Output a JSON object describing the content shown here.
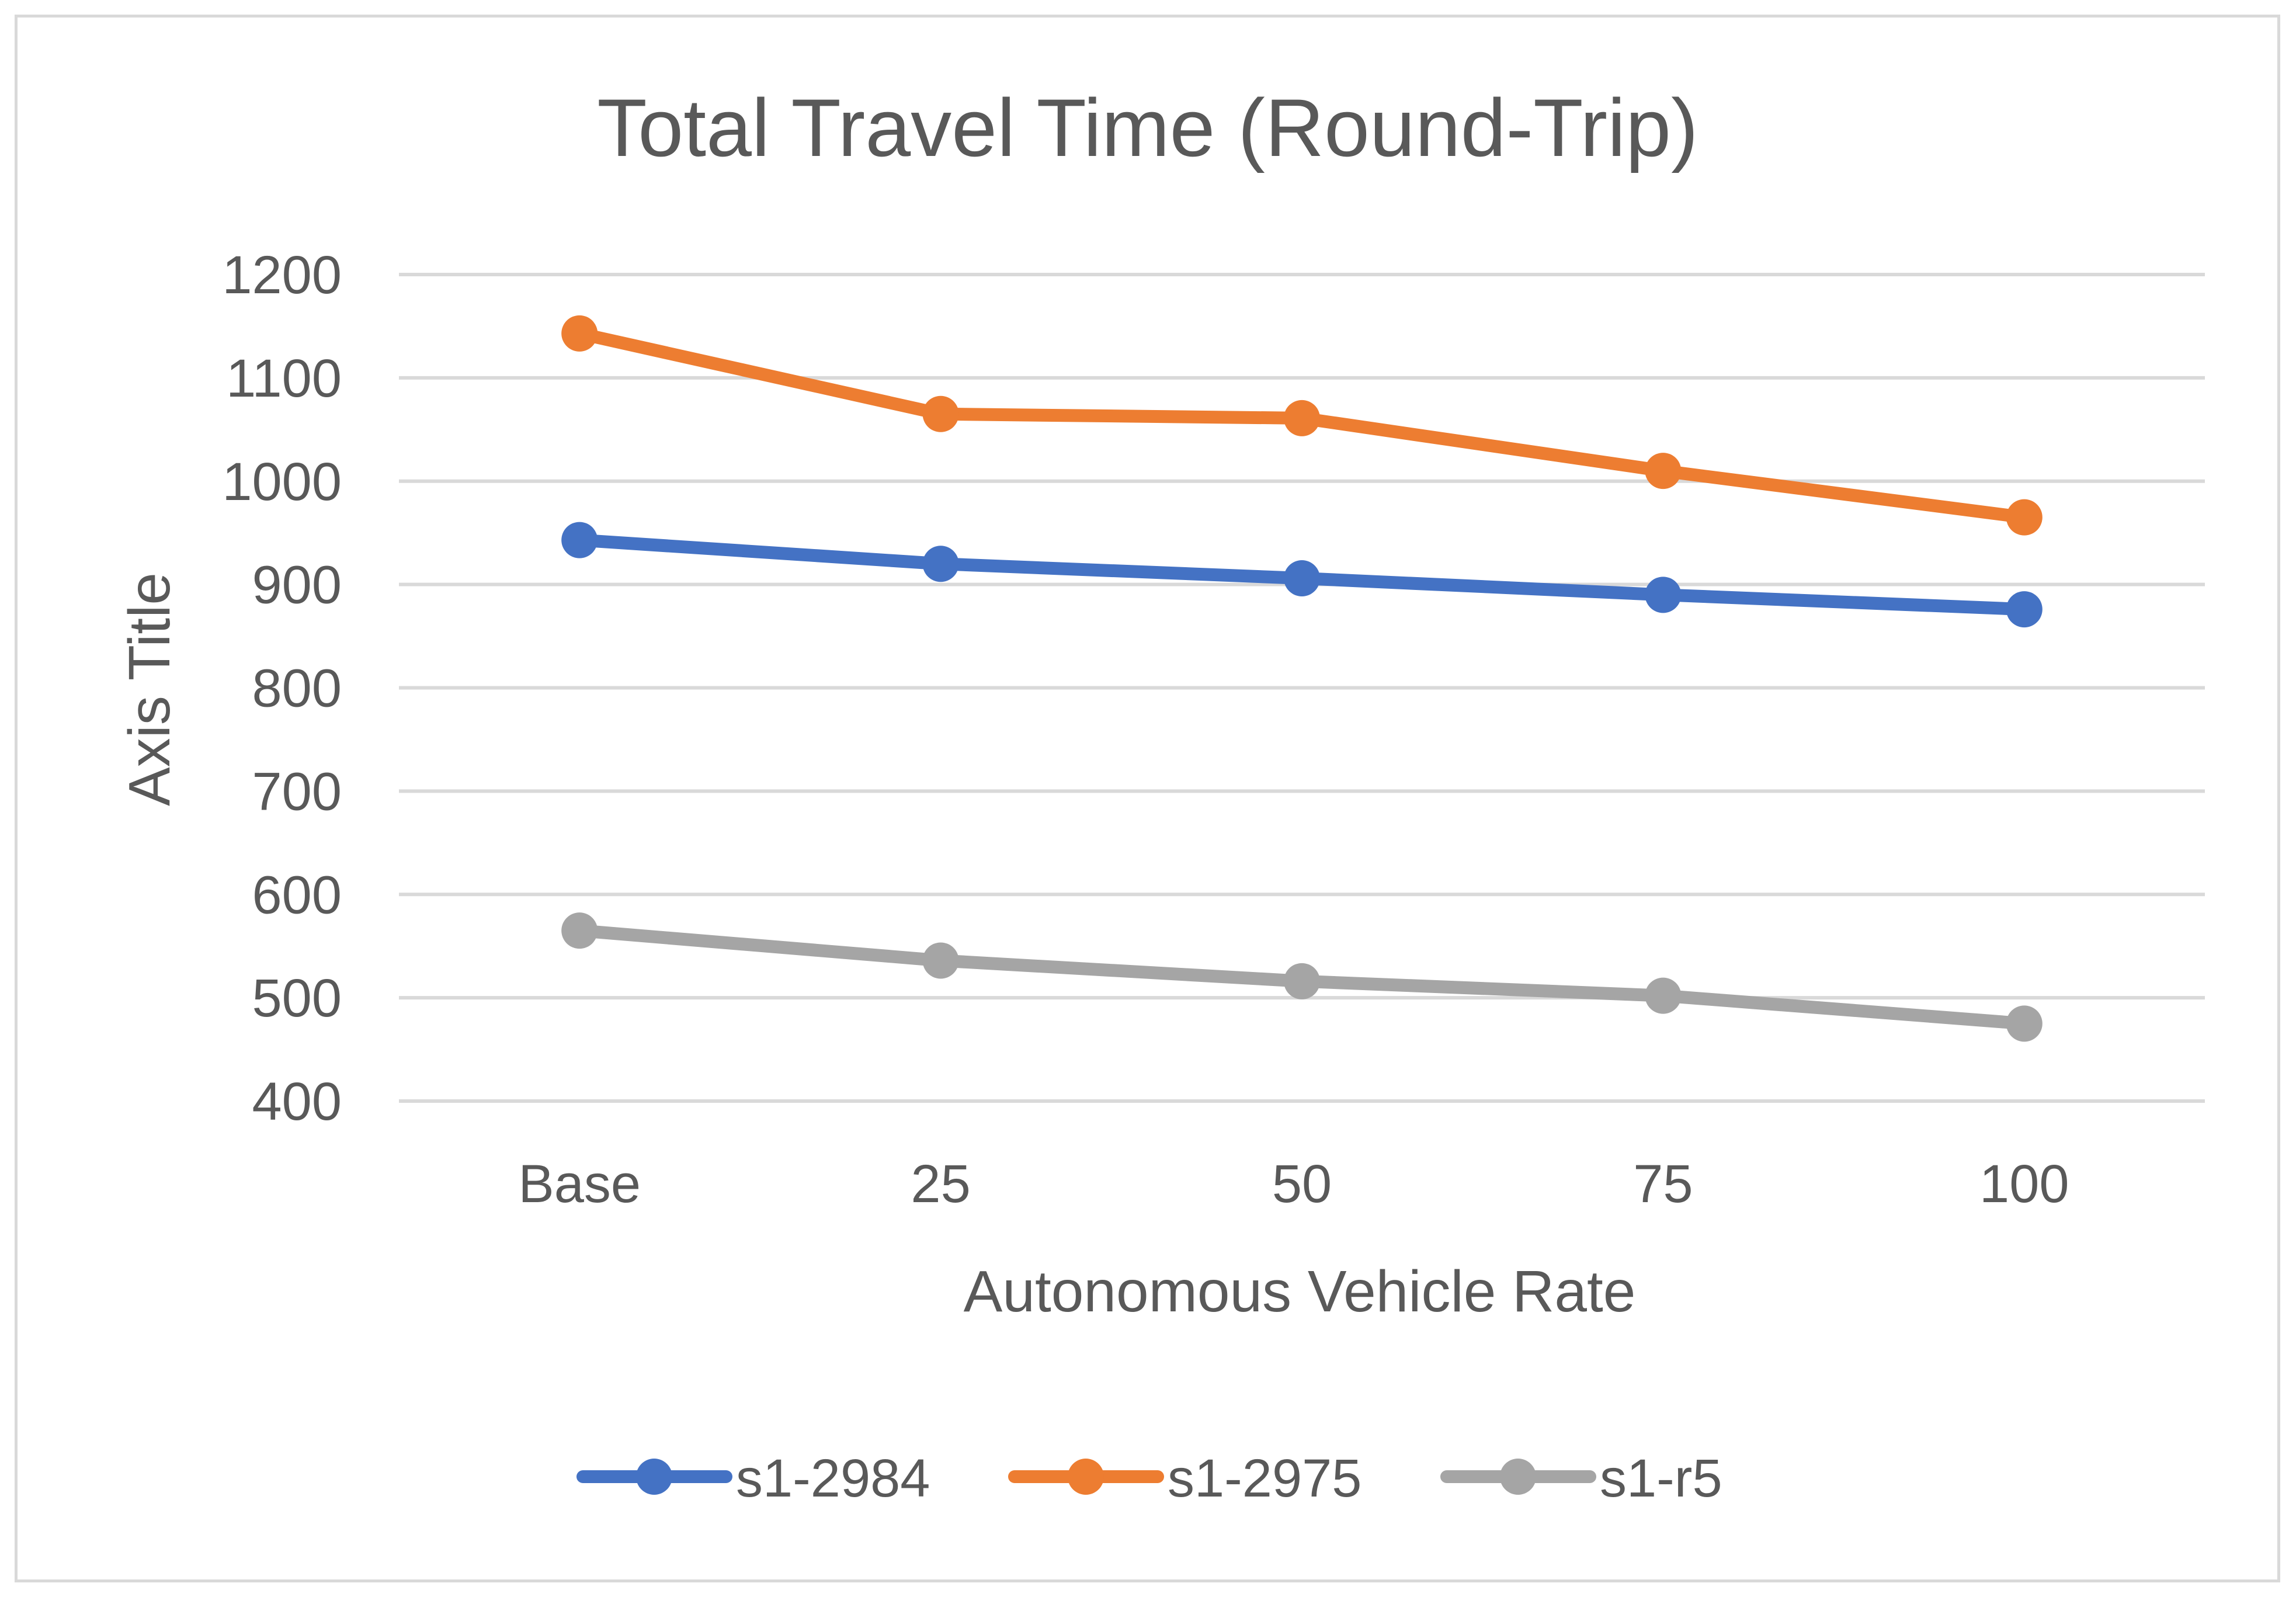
{
  "chart_data": {
    "type": "line",
    "title": "Total Travel Time (Round-Trip)",
    "xlabel": "Autonomous Vehicle Rate",
    "ylabel": "Axis Title",
    "categories": [
      "Base",
      "25",
      "50",
      "75",
      "100"
    ],
    "ylim": [
      400,
      1200
    ],
    "yticks": [
      400,
      500,
      600,
      700,
      800,
      900,
      1000,
      1100,
      1200
    ],
    "grid": true,
    "legend_position": "bottom",
    "series": [
      {
        "name": "s1-2984",
        "color": "#4472c4",
        "values": [
          943,
          920,
          906,
          890,
          876
        ]
      },
      {
        "name": "s1-2975",
        "color": "#ed7d31",
        "values": [
          1143,
          1065,
          1061,
          1010,
          965
        ]
      },
      {
        "name": "s1-r5",
        "color": "#a5a5a5",
        "values": [
          565,
          536,
          516,
          502,
          475
        ]
      }
    ]
  }
}
